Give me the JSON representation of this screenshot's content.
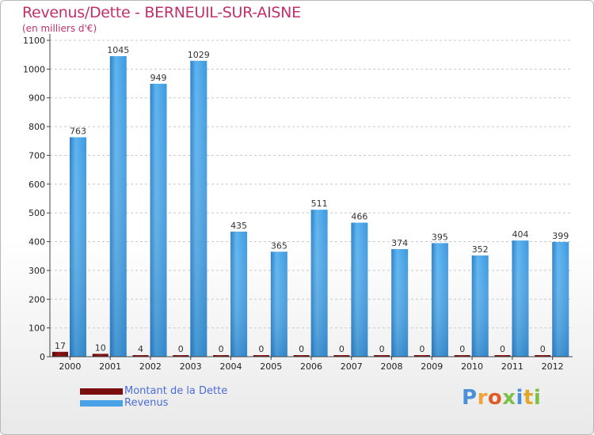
{
  "chart_data": {
    "type": "bar",
    "title": "Revenus/Dette - BERNEUIL-SUR-AISNE",
    "subtitle": "(en milliers d'€)",
    "xlabel": "",
    "ylabel": "",
    "ylim": [
      0,
      1100
    ],
    "yticks": [
      0,
      100,
      200,
      300,
      400,
      500,
      600,
      700,
      800,
      900,
      1000,
      1100
    ],
    "grid": "horizontal-dashed",
    "categories": [
      "2000",
      "2001",
      "2002",
      "2003",
      "2004",
      "2005",
      "2006",
      "2007",
      "2008",
      "2009",
      "2010",
      "2011",
      "2012"
    ],
    "series": [
      {
        "name": "Montant de la Dette",
        "color": "#7a0d0d",
        "values": [
          17,
          10,
          4,
          0,
          0,
          0,
          0,
          0,
          0,
          0,
          0,
          0,
          0
        ]
      },
      {
        "name": "Revenus",
        "color": "#4aa3e6",
        "values": [
          763,
          1045,
          949,
          1029,
          435,
          365,
          511,
          466,
          374,
          395,
          352,
          404,
          399
        ]
      }
    ],
    "legend_position": "bottom-left"
  },
  "logo": {
    "text": "Proxiti"
  }
}
